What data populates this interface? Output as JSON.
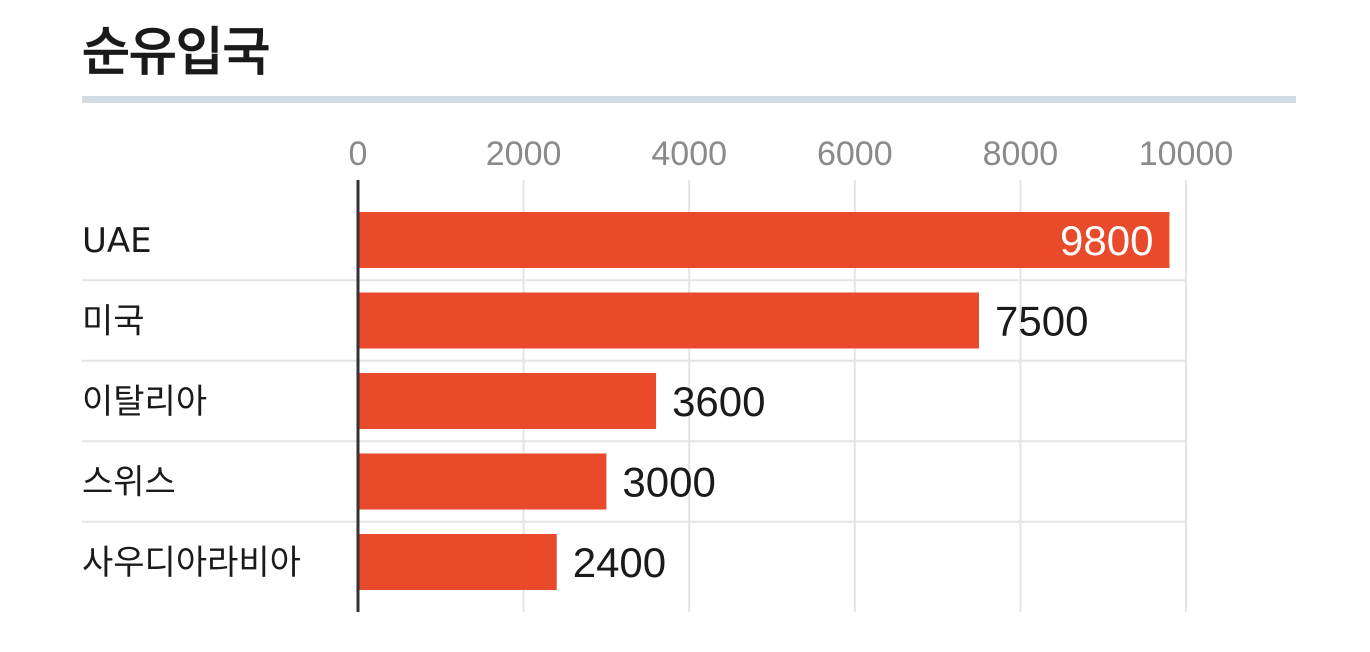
{
  "chart_data": {
    "type": "bar",
    "orientation": "horizontal",
    "title": "순유입국",
    "categories": [
      "UAE",
      "미국",
      "이탈리아",
      "스위스",
      "사우디아라비아"
    ],
    "values": [
      9800,
      7500,
      3600,
      3000,
      2400
    ],
    "x_ticks": [
      0,
      2000,
      4000,
      6000,
      8000,
      10000
    ],
    "xlim": [
      0,
      10000
    ],
    "grid": true,
    "colors": {
      "bar": "#e84a2b",
      "label_inside": "#ffffff",
      "label_outside": "#1a1a1a",
      "title_rule": "#d3dde5",
      "gridline": "#e4e4e4",
      "axis": "#333333"
    }
  }
}
